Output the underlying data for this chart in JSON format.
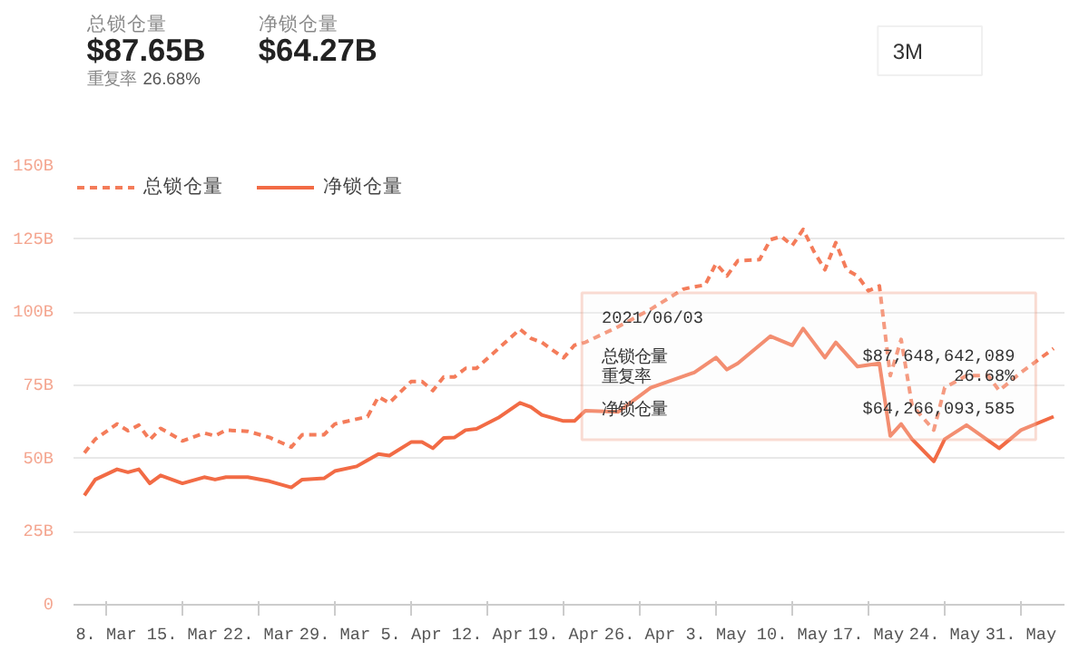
{
  "chart_data": {
    "type": "line",
    "annotations": [
      "总锁仓量",
      "$87.65B",
      "净锁仓量",
      "$64.27B",
      "重复率",
      "26.68%",
      "3M",
      "2021/06/03",
      "总锁仓量",
      "$87,648,642,089",
      "重复率",
      "26.68%",
      "净锁仓量",
      "$64,266,093,585"
    ],
    "xlim": [
      "2021-03-05",
      "2021-06-04"
    ],
    "xticks": [
      {
        "value": "2021-03-08",
        "label": "8. Mar"
      },
      {
        "value": "2021-03-15",
        "label": "15. Mar"
      },
      {
        "value": "2021-03-22",
        "label": "22. Mar"
      },
      {
        "value": "2021-03-29",
        "label": "29. Mar"
      },
      {
        "value": "2021-04-05",
        "label": "5. Apr"
      },
      {
        "value": "2021-04-12",
        "label": "12. Apr"
      },
      {
        "value": "2021-04-19",
        "label": "19. Apr"
      },
      {
        "value": "2021-04-26",
        "label": "26. Apr"
      },
      {
        "value": "2021-05-03",
        "label": "3. May"
      },
      {
        "value": "2021-05-10",
        "label": "10. May"
      },
      {
        "value": "2021-05-17",
        "label": "17. May"
      },
      {
        "value": "2021-05-24",
        "label": "24. May"
      },
      {
        "value": "2021-05-31",
        "label": "31. May"
      }
    ],
    "ylim": [
      0,
      150
    ],
    "yticks": [
      0,
      {
        "value": 25,
        "label": "25B"
      },
      {
        "value": 50,
        "label": "50B"
      },
      {
        "value": 75,
        "label": "75B"
      },
      {
        "value": 100,
        "label": "100B"
      },
      {
        "value": 125,
        "label": "125B"
      },
      {
        "value": 150,
        "label": "150B"
      }
    ],
    "grid": "y",
    "legend": "top left",
    "marker": "none",
    "series": [
      {
        "name": "总锁仓量",
        "color": "#f47c5a",
        "line_style": "dashed",
        "x": [
          "2021-03-06",
          "2021-03-07",
          "2021-03-09",
          "2021-03-10",
          "2021-03-11",
          "2021-03-12",
          "2021-03-13",
          "2021-03-15",
          "2021-03-17",
          "2021-03-18",
          "2021-03-19",
          "2021-03-21",
          "2021-03-23",
          "2021-03-25",
          "2021-03-26",
          "2021-03-28",
          "2021-03-29",
          "2021-04-01",
          "2021-04-02",
          "2021-04-03",
          "2021-04-05",
          "2021-04-06",
          "2021-04-07",
          "2021-04-08",
          "2021-04-09",
          "2021-04-10",
          "2021-04-11",
          "2021-04-15",
          "2021-04-16",
          "2021-04-17",
          "2021-04-19",
          "2021-04-20",
          "2021-04-21",
          "2021-04-24",
          "2021-04-27",
          "2021-04-30",
          "2021-05-01",
          "2021-05-02",
          "2021-05-03",
          "2021-05-04",
          "2021-05-05",
          "2021-05-07",
          "2021-05-08",
          "2021-05-09",
          "2021-05-10",
          "2021-05-11",
          "2021-05-12",
          "2021-05-13",
          "2021-05-14",
          "2021-05-15",
          "2021-05-16",
          "2021-05-17",
          "2021-05-18",
          "2021-05-19",
          "2021-05-20",
          "2021-05-21",
          "2021-05-23",
          "2021-05-24",
          "2021-05-26",
          "2021-05-28",
          "2021-05-29",
          "2021-05-31",
          "2021-06-03"
        ],
        "values": [
          51.9,
          56.6,
          61.8,
          59.5,
          61.4,
          56.4,
          60.3,
          56,
          58.7,
          57.7,
          59.7,
          59.3,
          57.2,
          53.9,
          58.1,
          58.1,
          61.8,
          64.3,
          71.1,
          69,
          76.3,
          76.3,
          73.2,
          77.9,
          77.9,
          80.8,
          80.8,
          94.2,
          91.1,
          89.7,
          84.4,
          88.7,
          89.7,
          95,
          101,
          107.9,
          108.7,
          109.3,
          116.6,
          112.4,
          117.6,
          118,
          124.8,
          125.9,
          122.8,
          128.3,
          120.7,
          114.5,
          123.8,
          114.5,
          112.4,
          107.3,
          109,
          78.3,
          90.7,
          68.2,
          59.7,
          74.2,
          78.3,
          78.3,
          73.2,
          79.4,
          87.6
        ]
      },
      {
        "name": "净锁仓量",
        "color": "#f26b45",
        "line_style": "solid",
        "x": [
          "2021-03-06",
          "2021-03-07",
          "2021-03-09",
          "2021-03-10",
          "2021-03-11",
          "2021-03-12",
          "2021-03-13",
          "2021-03-15",
          "2021-03-17",
          "2021-03-18",
          "2021-03-19",
          "2021-03-21",
          "2021-03-23",
          "2021-03-25",
          "2021-03-26",
          "2021-03-28",
          "2021-03-29",
          "2021-03-31",
          "2021-04-02",
          "2021-04-03",
          "2021-04-05",
          "2021-04-06",
          "2021-04-07",
          "2021-04-08",
          "2021-04-09",
          "2021-04-10",
          "2021-04-11",
          "2021-04-13",
          "2021-04-15",
          "2021-04-16",
          "2021-04-17",
          "2021-04-19",
          "2021-04-20",
          "2021-04-21",
          "2021-04-24",
          "2021-04-27",
          "2021-05-01",
          "2021-05-03",
          "2021-05-04",
          "2021-05-05",
          "2021-05-08",
          "2021-05-10",
          "2021-05-11",
          "2021-05-13",
          "2021-05-14",
          "2021-05-16",
          "2021-05-18",
          "2021-05-19",
          "2021-05-20",
          "2021-05-21",
          "2021-05-23",
          "2021-05-24",
          "2021-05-26",
          "2021-05-29",
          "2021-05-31",
          "2021-06-03"
        ],
        "values": [
          37.4,
          42.8,
          46.3,
          45.3,
          46.3,
          41.5,
          44.2,
          41.5,
          43.6,
          42.8,
          43.6,
          43.6,
          42.2,
          40.1,
          42.8,
          43.2,
          45.7,
          47.3,
          51.5,
          51,
          55.6,
          55.6,
          53.5,
          57,
          57.2,
          59.7,
          60.1,
          63.9,
          69,
          67.6,
          64.9,
          62.8,
          62.8,
          66.3,
          65.9,
          74.2,
          79.4,
          84.5,
          80.4,
          82.5,
          91.8,
          88.7,
          94.4,
          84.5,
          89.7,
          81.4,
          82.5,
          57.7,
          61.8,
          56.6,
          49,
          56.6,
          61.4,
          53.5,
          59.7,
          64.3
        ]
      }
    ]
  }
}
